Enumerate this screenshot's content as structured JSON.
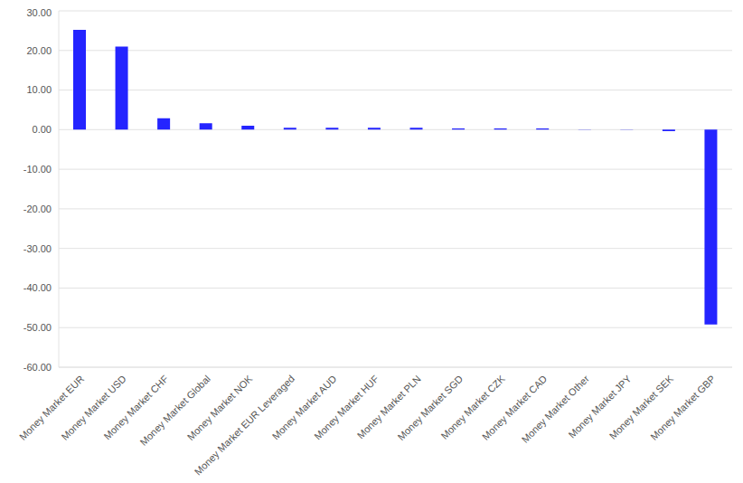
{
  "chart_data": {
    "type": "bar",
    "categories": [
      "Money Market EUR",
      "Money Market USD",
      "Money Market CHF",
      "Money Market Global",
      "Money Market NOK",
      "Money Market EUR Leveraged",
      "Money Market AUD",
      "Money Market HUF",
      "Money Market PLN",
      "Money Market SGD",
      "Money Market CZK",
      "Money Market CAD",
      "Money Market Other",
      "Money Market JPY",
      "Money Market SEK",
      "Money Market GBP"
    ],
    "values": [
      25.2,
      21.0,
      2.9,
      1.6,
      1.0,
      0.5,
      0.5,
      0.5,
      0.5,
      0.3,
      0.3,
      0.3,
      0.05,
      0.05,
      -0.4,
      -49.2
    ],
    "color": "#2424ff",
    "ylim": [
      -60,
      30
    ],
    "yticks": [
      {
        "value": -60,
        "label": "-60.00"
      },
      {
        "value": -50,
        "label": "-50.00"
      },
      {
        "value": -40,
        "label": "-40.00"
      },
      {
        "value": -30,
        "label": "-30.00"
      },
      {
        "value": -20,
        "label": "-20.00"
      },
      {
        "value": -10,
        "label": "-10.00"
      },
      {
        "value": 0,
        "label": "0.00"
      },
      {
        "value": 10,
        "label": "10.00"
      },
      {
        "value": 20,
        "label": "20.00"
      },
      {
        "value": 30,
        "label": "30.00"
      }
    ],
    "grid": true
  }
}
